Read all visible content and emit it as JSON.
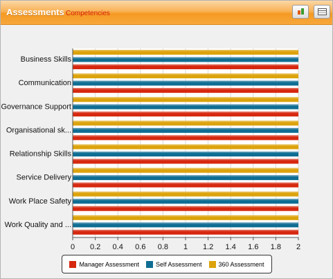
{
  "header": {
    "title": "Assessments",
    "subtitle": "Competencies",
    "buttons": [
      {
        "name": "chart-type-button",
        "icon": "bar-chart-icon"
      },
      {
        "name": "grid-view-button",
        "icon": "table-icon"
      }
    ]
  },
  "chart_data": {
    "type": "bar",
    "orientation": "horizontal",
    "categories": [
      "Business Skills",
      "Communication",
      "Governance Support",
      "Organisational sk...",
      "Relationship Skills",
      "Service Delivery",
      "Work Place Safety",
      "Work Quality and ..."
    ],
    "series": [
      {
        "name": "Manager Assessment",
        "color": "#d6280f",
        "values": [
          2,
          2,
          2,
          2,
          2,
          2,
          2,
          2
        ]
      },
      {
        "name": "Self Assessment",
        "color": "#0f6d93",
        "values": [
          2,
          2,
          2,
          2,
          2,
          2,
          2,
          2
        ]
      },
      {
        "name": "360 Assessment",
        "color": "#dca30c",
        "values": [
          2,
          2,
          2,
          2,
          2,
          2,
          2,
          2
        ]
      }
    ],
    "xlim": [
      0,
      2
    ],
    "xticks": [
      "0",
      "0.2",
      "0.4",
      "0.6",
      "0.8",
      "1",
      "1.2",
      "1.4",
      "1.6",
      "1.8",
      "2"
    ],
    "grid": true,
    "legend_position": "bottom"
  }
}
